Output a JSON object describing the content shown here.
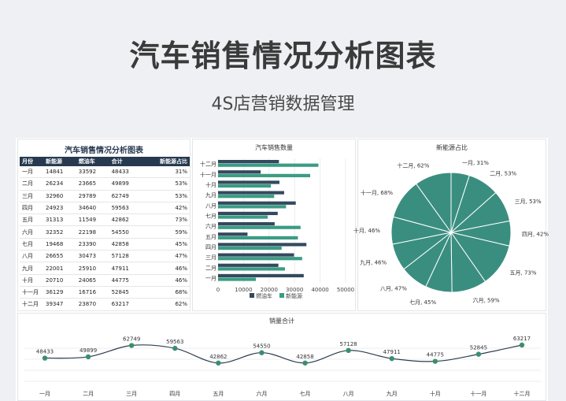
{
  "hero": {
    "title": "汽车销售情况分析图表",
    "subtitle": "4S店营销数据管理"
  },
  "table": {
    "title": "汽车销售情况分析图表",
    "headers": [
      "月份",
      "新能源",
      "燃油车",
      "合计",
      "新能源占比"
    ],
    "rows": [
      [
        "一月",
        "14841",
        "33592",
        "48433",
        "31%"
      ],
      [
        "二月",
        "26234",
        "23665",
        "49899",
        "53%"
      ],
      [
        "三月",
        "32960",
        "29789",
        "62749",
        "53%"
      ],
      [
        "四月",
        "24923",
        "34640",
        "59563",
        "42%"
      ],
      [
        "五月",
        "31313",
        "11549",
        "42862",
        "73%"
      ],
      [
        "六月",
        "32352",
        "22198",
        "54550",
        "59%"
      ],
      [
        "七月",
        "19468",
        "23390",
        "42858",
        "45%"
      ],
      [
        "八月",
        "26655",
        "30473",
        "57128",
        "47%"
      ],
      [
        "九月",
        "22001",
        "25910",
        "47911",
        "46%"
      ],
      [
        "十月",
        "20710",
        "24065",
        "44775",
        "46%"
      ],
      [
        "十一月",
        "36129",
        "16716",
        "52845",
        "68%"
      ],
      [
        "十二月",
        "39347",
        "23870",
        "63217",
        "62%"
      ]
    ]
  },
  "colors": {
    "fuel": "#34495e",
    "ev": "#3a9c84",
    "pie": "#3a8e80",
    "line": "#2c3e50",
    "marker": "#3a8e6e"
  },
  "chart_data": [
    {
      "type": "bar",
      "orientation": "horizontal",
      "title": "汽车销售数量",
      "categories": [
        "一月",
        "二月",
        "三月",
        "四月",
        "五月",
        "六月",
        "七月",
        "八月",
        "九月",
        "十月",
        "十一月",
        "十二月"
      ],
      "series": [
        {
          "name": "燃油车",
          "values": [
            33592,
            23665,
            29789,
            34640,
            11549,
            22198,
            23390,
            30473,
            25910,
            24065,
            16716,
            23870
          ]
        },
        {
          "name": "新能源",
          "values": [
            14841,
            26234,
            32960,
            24923,
            31313,
            32352,
            19468,
            26655,
            22001,
            20710,
            36129,
            39347
          ]
        }
      ],
      "xlim": [
        0,
        50000
      ],
      "xticks": [
        "0",
        "10000",
        "20000",
        "30000",
        "40000",
        "50000"
      ],
      "legend": "bottom"
    },
    {
      "type": "pie",
      "title": "新能源占比",
      "labels": [
        "一月, 31%",
        "二月, 53%",
        "三月, 53%",
        "四月, 42%",
        "五月, 73%",
        "六月, 59%",
        "七月, 45%",
        "八月, 47%",
        "九月, 46%",
        "十月, 46%",
        "十一月, 68%",
        "十二月, 62%"
      ],
      "values": [
        31,
        53,
        53,
        42,
        73,
        59,
        45,
        47,
        46,
        46,
        68,
        62
      ]
    },
    {
      "type": "line",
      "title": "销量合计",
      "categories": [
        "一月",
        "二月",
        "三月",
        "四月",
        "五月",
        "六月",
        "七月",
        "八月",
        "九月",
        "十月",
        "十一月",
        "十二月"
      ],
      "values": [
        48433,
        49899,
        62749,
        59563,
        42862,
        54550,
        42858,
        57128,
        47911,
        44775,
        52845,
        63217
      ],
      "labels": [
        "48433",
        "49899",
        "62749",
        "59563",
        "42862",
        "54550",
        "42858",
        "57128",
        "47911",
        "44775",
        "52845",
        "63217"
      ]
    }
  ]
}
